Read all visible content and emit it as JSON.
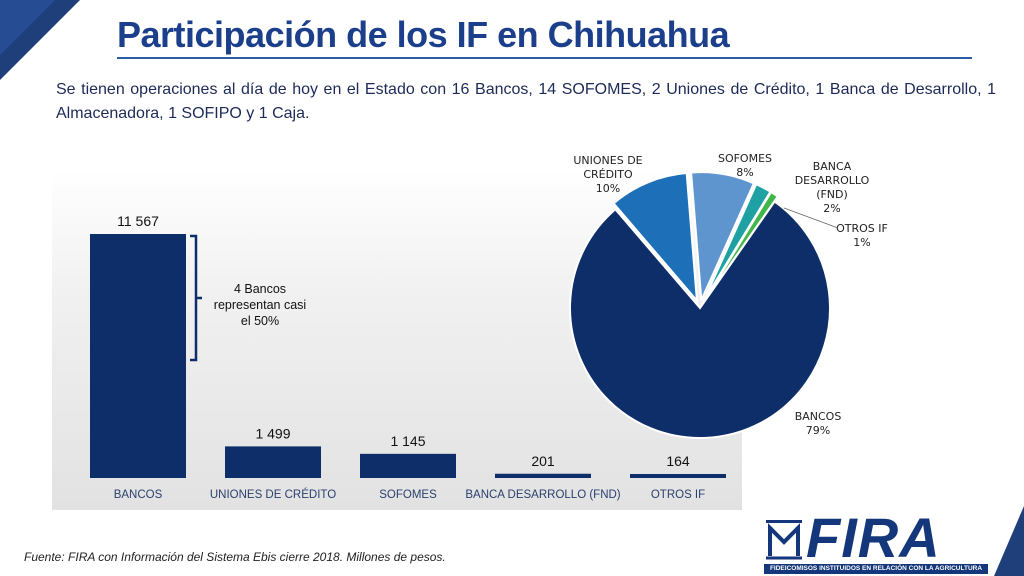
{
  "page": {
    "title": "Participación de los IF en Chihuahua",
    "subtitle": "Se tienen operaciones al día de hoy en el Estado con 16 Bancos, 14 SOFOMES, 2 Uniones de Crédito, 1 Banca de Desarrollo, 1 Almacenadora, 1 SOFIPO y 1 Caja.",
    "source": "Fuente: FIRA con Información del Sistema Ebis cierre 2018. Millones de pesos.",
    "annotation": "4 Bancos representan casi el 50%",
    "logo_text": "FIRA",
    "logo_subtext": "FIDEICOMISOS INSTITUIDOS EN RELACIÓN CON LA AGRICULTURA"
  },
  "colors": {
    "title": "#1c3f8c",
    "bar": "#0e2e6a",
    "pie_bancos": "#0e2e6a",
    "pie_uniones": "#1d6fb8",
    "pie_sofomes": "#5e95cf",
    "pie_banca": "#1fa0a3",
    "pie_otros": "#43b649"
  },
  "chart_data": [
    {
      "type": "bar",
      "categories": [
        "BANCOS",
        "UNIONES DE CRÉDITO",
        "SOFOMES",
        "BANCA DESARROLLO (FND)",
        "OTROS IF"
      ],
      "values": [
        11567,
        1499,
        1145,
        201,
        164
      ],
      "value_labels": [
        "11 567",
        "1 499",
        "1 145",
        "201",
        "164"
      ],
      "title": "",
      "xlabel": "",
      "ylabel": "",
      "ylim": [
        0,
        11567
      ],
      "grid": false
    },
    {
      "type": "pie",
      "slices": [
        {
          "label": "BANCOS",
          "value": 79,
          "pct_label": "79%",
          "color": "#0e2e6a",
          "exploded": false
        },
        {
          "label": "UNIONES DE CRÉDITO",
          "value": 10,
          "pct_label": "10%",
          "color": "#1d6fb8",
          "exploded": true
        },
        {
          "label": "SOFOMES",
          "value": 8,
          "pct_label": "8%",
          "color": "#5e95cf",
          "exploded": true
        },
        {
          "label": "BANCA DESARROLLO (FND)",
          "value": 2,
          "pct_label": "2%",
          "color": "#1fa0a3",
          "exploded": true
        },
        {
          "label": "OTROS IF",
          "value": 1,
          "pct_label": "1%",
          "color": "#43b649",
          "exploded": true
        }
      ],
      "title": ""
    }
  ]
}
